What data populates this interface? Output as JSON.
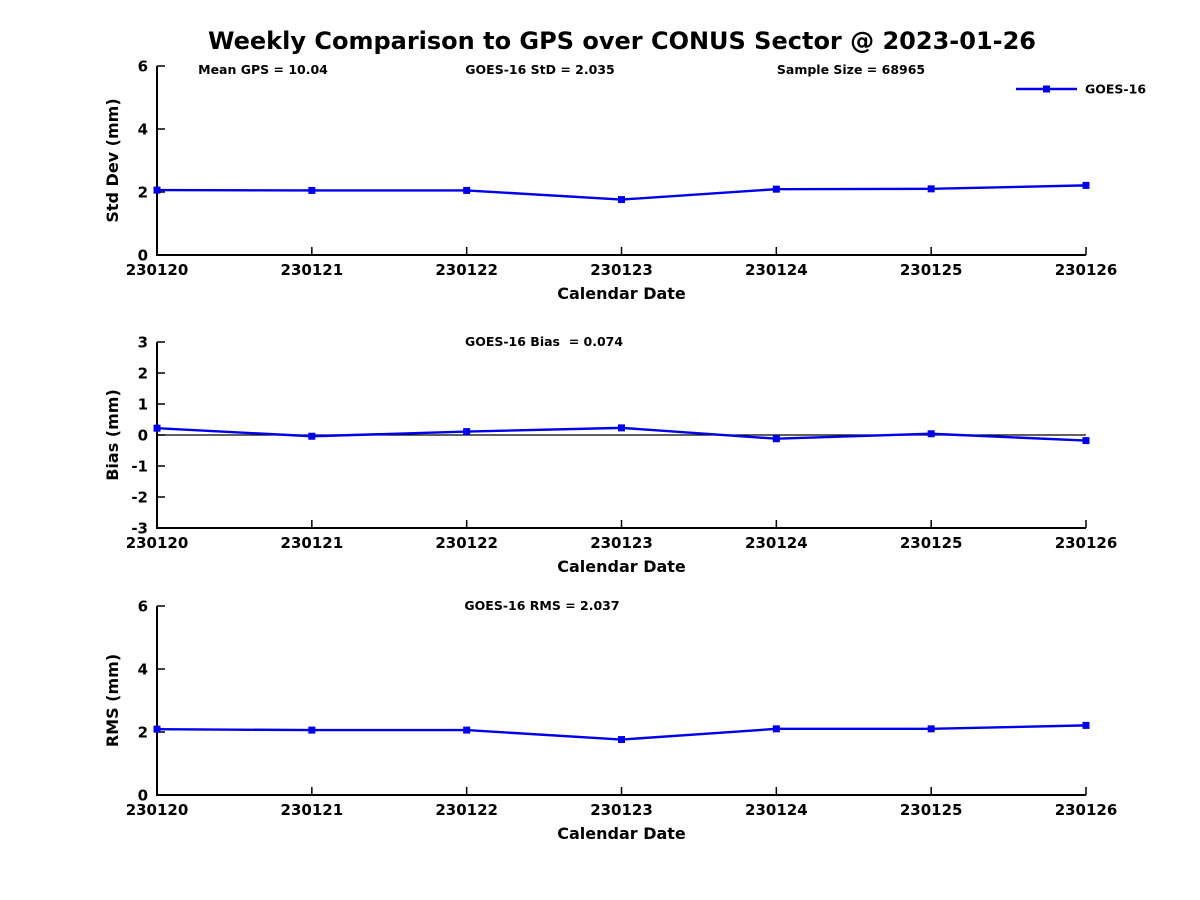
{
  "title": "Weekly Comparison to GPS over CONUS Sector @ 2023-01-26",
  "colors": {
    "line": "#0000EE",
    "marker": "#0000EE",
    "axis": "#000000",
    "text": "#000000",
    "zero_line": "#000000"
  },
  "legend": {
    "label": "GOES-16",
    "position": "top-right-above-axes"
  },
  "chart_data": [
    {
      "type": "line",
      "name": "std-dev-subplot",
      "categories": [
        "230120",
        "230121",
        "230122",
        "230123",
        "230124",
        "230125",
        "230126"
      ],
      "series": [
        {
          "name": "GOES-16",
          "values": [
            2.06,
            2.05,
            2.05,
            1.76,
            2.09,
            2.1,
            2.21
          ]
        }
      ],
      "xlabel": "Calendar Date",
      "ylabel": "Std Dev (mm)",
      "ylim": [
        0,
        6
      ],
      "yticks": [
        0,
        2,
        4,
        6
      ],
      "grid": false,
      "zero_line": false,
      "show_legend": true,
      "annotations": [
        "Mean GPS = 10.04",
        "GOES-16 StD = 2.035",
        "Sample Size = 68965"
      ]
    },
    {
      "type": "line",
      "name": "bias-subplot",
      "categories": [
        "230120",
        "230121",
        "230122",
        "230123",
        "230124",
        "230125",
        "230126"
      ],
      "series": [
        {
          "name": "GOES-16",
          "values": [
            0.22,
            -0.04,
            0.11,
            0.23,
            -0.12,
            0.04,
            -0.18
          ]
        }
      ],
      "xlabel": "Calendar Date",
      "ylabel": "Bias (mm)",
      "ylim": [
        -3,
        3
      ],
      "yticks": [
        -3,
        -2,
        -1,
        0,
        1,
        2,
        3
      ],
      "grid": false,
      "zero_line": true,
      "show_legend": false,
      "annotations": [
        "GOES-16 Bias  = 0.074"
      ]
    },
    {
      "type": "line",
      "name": "rms-subplot",
      "categories": [
        "230120",
        "230121",
        "230122",
        "230123",
        "230124",
        "230125",
        "230126"
      ],
      "series": [
        {
          "name": "GOES-16",
          "values": [
            2.09,
            2.06,
            2.06,
            1.76,
            2.1,
            2.1,
            2.21
          ]
        }
      ],
      "xlabel": "Calendar Date",
      "ylabel": "RMS (mm)",
      "ylim": [
        0,
        6
      ],
      "yticks": [
        0,
        2,
        4,
        6
      ],
      "grid": false,
      "zero_line": false,
      "show_legend": false,
      "annotations": [
        "GOES-16 RMS = 2.037"
      ]
    }
  ]
}
